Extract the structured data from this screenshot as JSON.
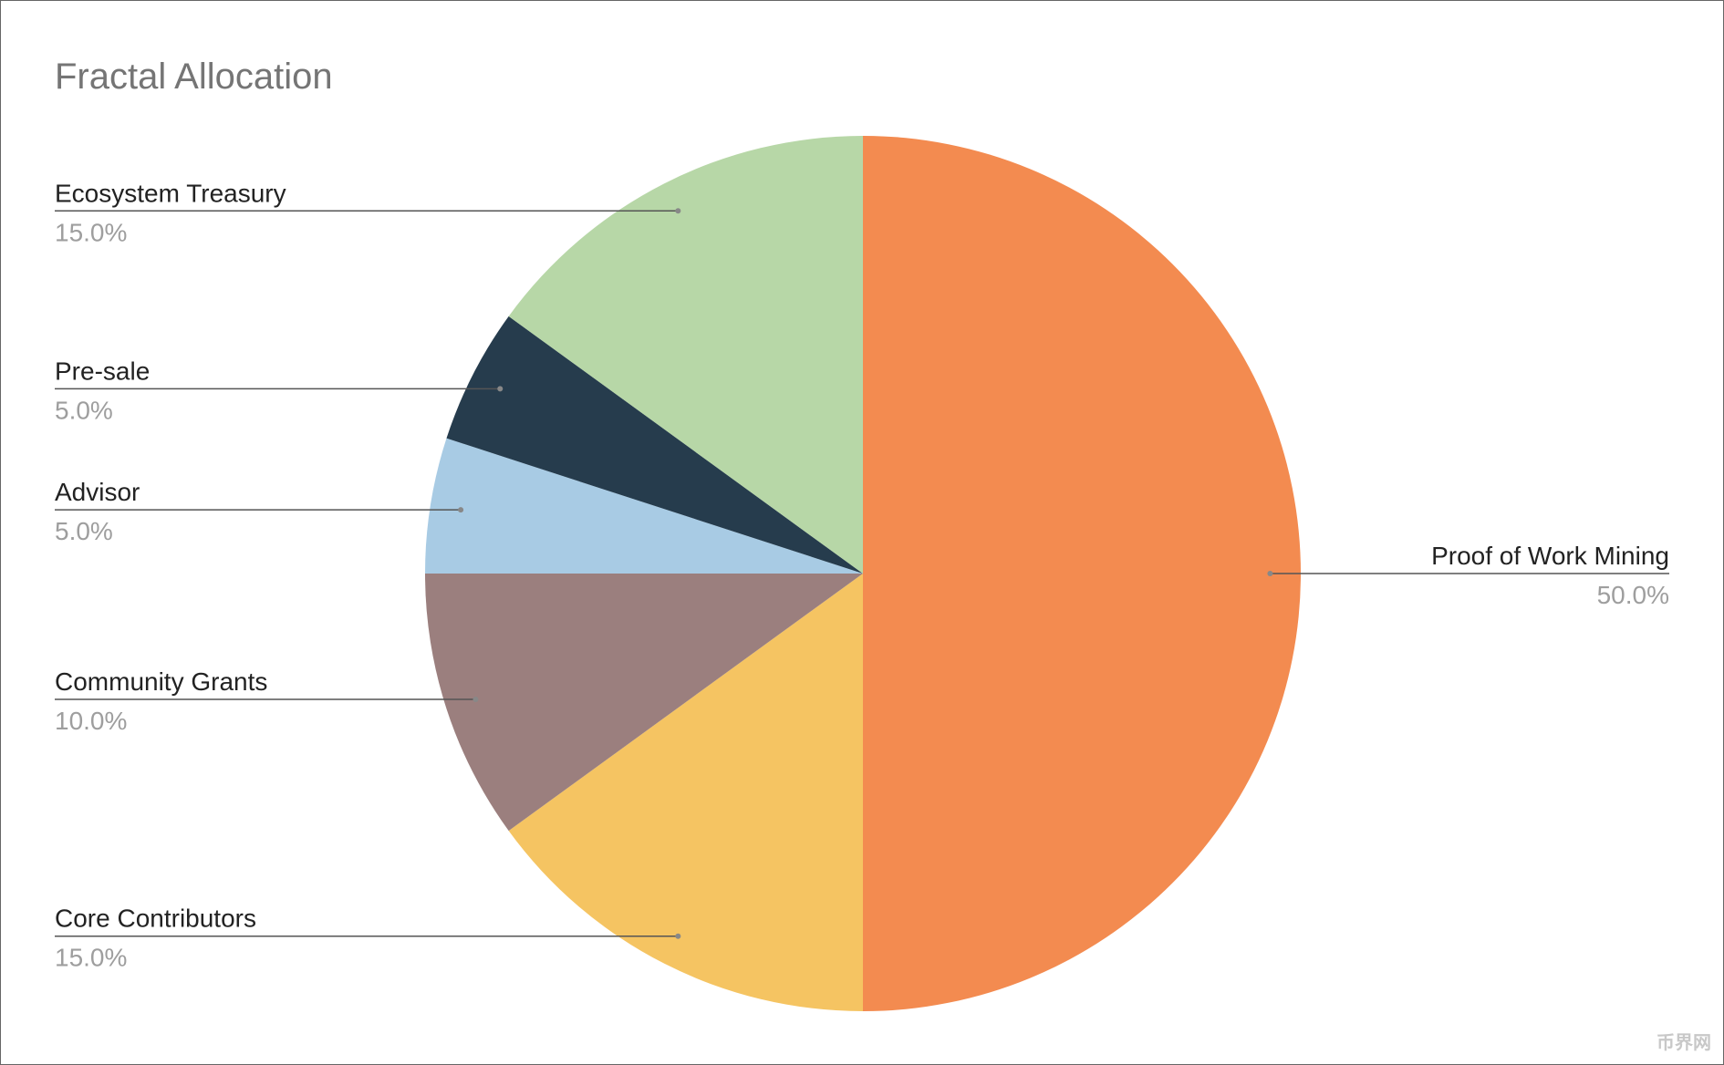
{
  "chart_data": {
    "type": "pie",
    "title": "Fractal Allocation",
    "categories": [
      "Proof of Work Mining",
      "Core Contributors",
      "Community Grants",
      "Advisor",
      "Pre-sale",
      "Ecosystem Treasury"
    ],
    "values": [
      50,
      15,
      10,
      5,
      5,
      15
    ],
    "value_labels": [
      "50.0%",
      "15.0%",
      "10.0%",
      "5.0%",
      "5.0%",
      "15.0%"
    ],
    "colors": [
      "#f38b50",
      "#f5c462",
      "#9b7f7e",
      "#a8cbe4",
      "#263c4d",
      "#b7d7a7"
    ],
    "watermark": "币界网"
  }
}
